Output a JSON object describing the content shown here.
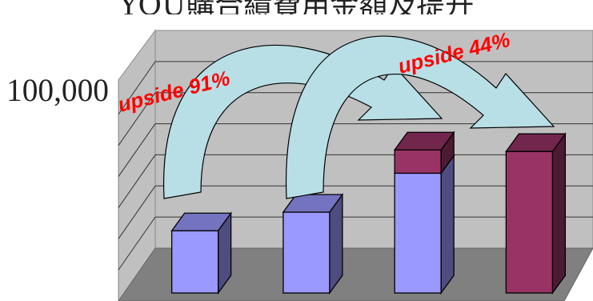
{
  "chart_data": {
    "type": "bar",
    "title": "YOU購合績費用金額及提升",
    "ytick_label": "100,000",
    "categories": [
      "",
      "",
      "",
      ""
    ],
    "series": [
      {
        "values": [
          40000,
          52000,
          77000,
          0
        ],
        "color": "#9999ff"
      },
      {
        "values": [
          0,
          0,
          15000,
          91000
        ],
        "color": "#993366"
      }
    ],
    "ylim": [
      0,
      140000
    ],
    "grid": true,
    "annotations": [
      {
        "text": "upside 91%",
        "color": "#ff0000"
      },
      {
        "text": "upside 44%",
        "color": "#ff0000"
      }
    ]
  }
}
